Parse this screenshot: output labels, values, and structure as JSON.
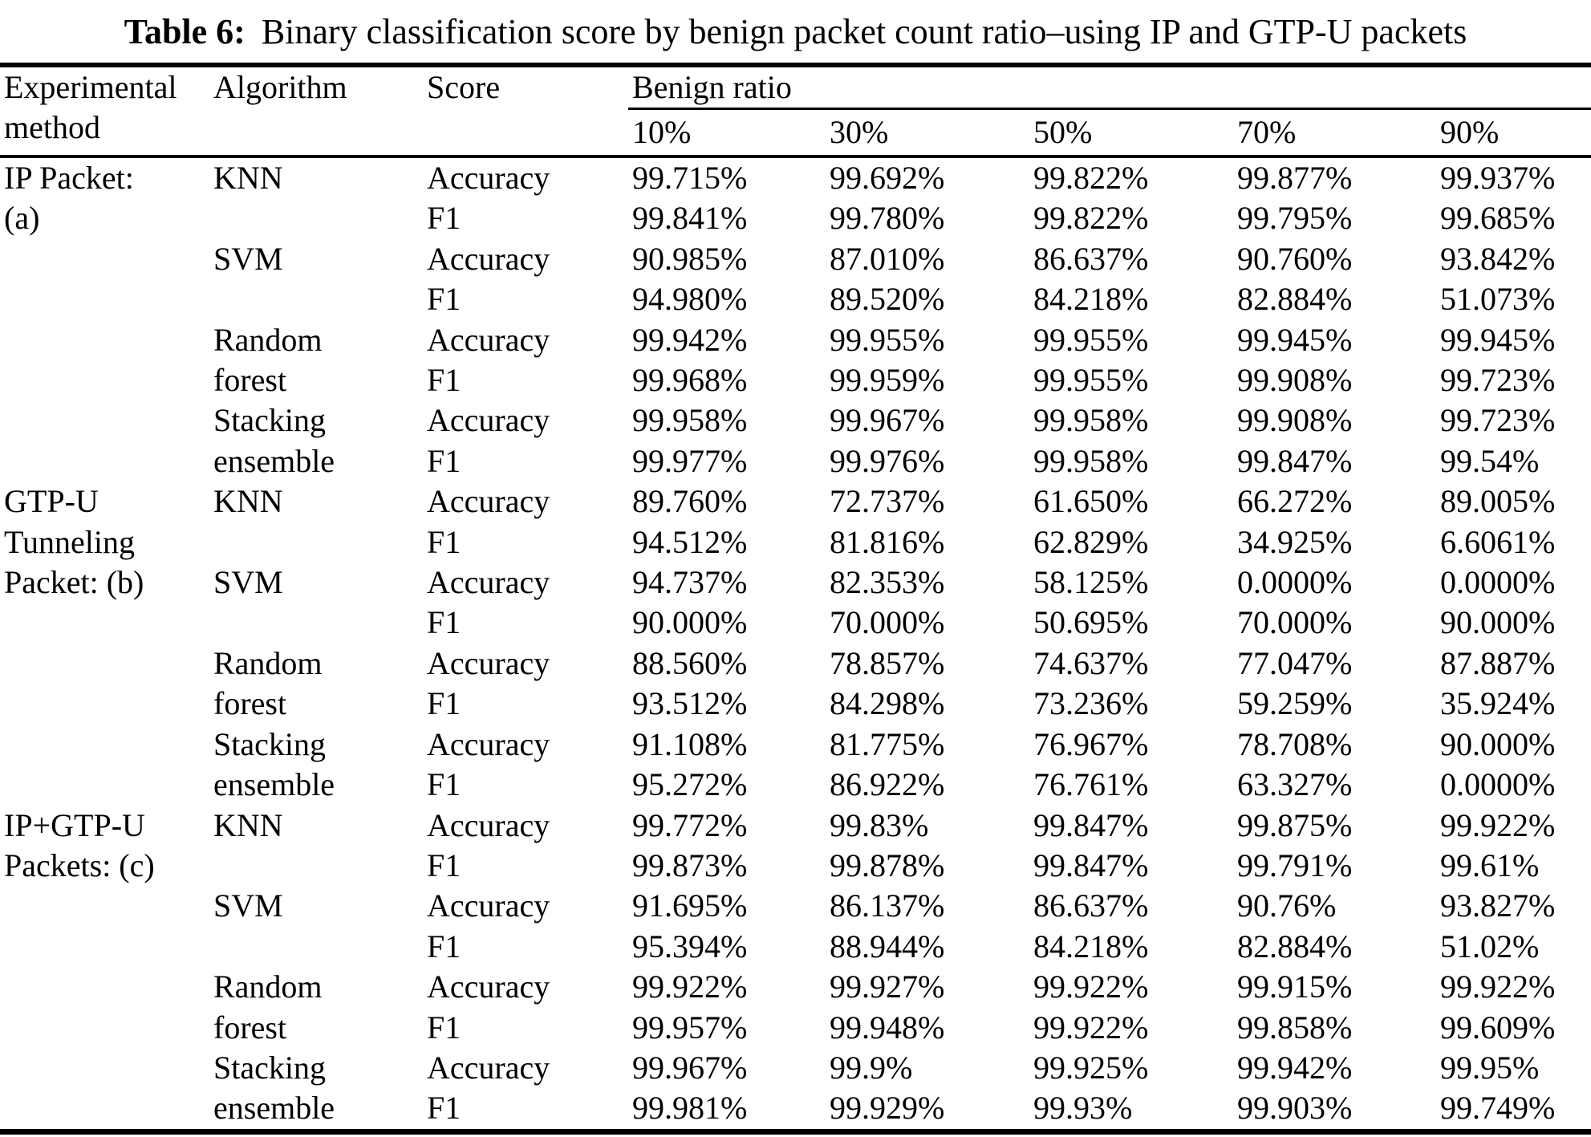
{
  "title": {
    "label": "Table 6:",
    "text": "Binary classification score by benign packet count ratio–using IP and GTP-U packets"
  },
  "header": {
    "col_method": "Experimental method",
    "col_algorithm": "Algorithm",
    "col_score": "Score",
    "col_benign_ratio": "Benign ratio",
    "ratios": [
      "10%",
      "30%",
      "50%",
      "70%",
      "90%"
    ]
  },
  "colors": {
    "text": "#000000",
    "background": "#ffffff",
    "rule": "#000000"
  },
  "chart_data": {
    "type": "table",
    "title": "Table 6: Binary classification score by benign packet count ratio–using IP and GTP-U packets",
    "columns": [
      "Experimental method",
      "Algorithm",
      "Score",
      "10%",
      "30%",
      "50%",
      "70%",
      "90%"
    ],
    "sections": [
      {
        "method": "IP Packet: (a)",
        "results": [
          {
            "algorithm": "KNN",
            "accuracy": [
              99.715,
              99.692,
              99.822,
              99.877,
              99.937
            ],
            "f1": [
              99.841,
              99.78,
              99.822,
              99.795,
              99.685
            ]
          },
          {
            "algorithm": "SVM",
            "accuracy": [
              90.985,
              87.01,
              86.637,
              90.76,
              93.842
            ],
            "f1": [
              94.98,
              89.52,
              84.218,
              82.884,
              51.073
            ]
          },
          {
            "algorithm": "Random forest",
            "accuracy": [
              99.942,
              99.955,
              99.955,
              99.945,
              99.945
            ],
            "f1": [
              99.968,
              99.959,
              99.955,
              99.908,
              99.723
            ]
          },
          {
            "algorithm": "Stacking ensemble",
            "accuracy": [
              99.958,
              99.967,
              99.958,
              99.908,
              99.723
            ],
            "f1": [
              99.977,
              99.976,
              99.958,
              99.847,
              99.54
            ]
          }
        ]
      },
      {
        "method": "GTP-U Tunneling Packet: (b)",
        "results": [
          {
            "algorithm": "KNN",
            "accuracy": [
              89.76,
              72.737,
              61.65,
              66.272,
              89.005
            ],
            "f1": [
              94.512,
              81.816,
              62.829,
              34.925,
              6.6061
            ]
          },
          {
            "algorithm": "SVM",
            "accuracy": [
              94.737,
              82.353,
              58.125,
              0.0,
              0.0
            ],
            "f1": [
              90.0,
              70.0,
              50.695,
              70.0,
              90.0
            ]
          },
          {
            "algorithm": "Random forest",
            "accuracy": [
              88.56,
              78.857,
              74.637,
              77.047,
              87.887
            ],
            "f1": [
              93.512,
              84.298,
              73.236,
              59.259,
              35.924
            ]
          },
          {
            "algorithm": "Stacking ensemble",
            "accuracy": [
              91.108,
              81.775,
              76.967,
              78.708,
              90.0
            ],
            "f1": [
              95.272,
              86.922,
              76.761,
              63.327,
              0.0
            ]
          }
        ]
      },
      {
        "method": "IP+GTP-U Packets: (c)",
        "results": [
          {
            "algorithm": "KNN",
            "accuracy": [
              99.772,
              99.83,
              99.847,
              99.875,
              99.922
            ],
            "f1": [
              99.873,
              99.878,
              99.847,
              99.791,
              99.61
            ]
          },
          {
            "algorithm": "SVM",
            "accuracy": [
              91.695,
              86.137,
              86.637,
              90.76,
              93.827
            ],
            "f1": [
              95.394,
              88.944,
              84.218,
              82.884,
              51.02
            ]
          },
          {
            "algorithm": "Random forest",
            "accuracy": [
              99.922,
              99.927,
              99.922,
              99.915,
              99.922
            ],
            "f1": [
              99.957,
              99.948,
              99.922,
              99.858,
              99.609
            ]
          },
          {
            "algorithm": "Stacking ensemble",
            "accuracy": [
              99.967,
              99.9,
              99.925,
              99.942,
              99.95
            ],
            "f1": [
              99.981,
              99.929,
              99.93,
              99.903,
              99.749
            ]
          }
        ]
      }
    ]
  },
  "table": {
    "rows": [
      {
        "method": "IP Packet:",
        "algorithm": "KNN",
        "score": "Accuracy",
        "values": [
          "99.715%",
          "99.692%",
          "99.822%",
          "99.877%",
          "99.937%"
        ]
      },
      {
        "method": "(a)",
        "algorithm": "",
        "score": "F1",
        "values": [
          "99.841%",
          "99.780%",
          "99.822%",
          "99.795%",
          "99.685%"
        ]
      },
      {
        "method": "",
        "algorithm": "SVM",
        "score": "Accuracy",
        "values": [
          "90.985%",
          "87.010%",
          "86.637%",
          "90.760%",
          "93.842%"
        ]
      },
      {
        "method": "",
        "algorithm": "",
        "score": "F1",
        "values": [
          "94.980%",
          "89.520%",
          "84.218%",
          "82.884%",
          "51.073%"
        ]
      },
      {
        "method": "",
        "algorithm": "Random",
        "score": "Accuracy",
        "values": [
          "99.942%",
          "99.955%",
          "99.955%",
          "99.945%",
          "99.945%"
        ]
      },
      {
        "method": "",
        "algorithm": "forest",
        "score": "F1",
        "values": [
          "99.968%",
          "99.959%",
          "99.955%",
          "99.908%",
          "99.723%"
        ]
      },
      {
        "method": "",
        "algorithm": "Stacking",
        "score": "Accuracy",
        "values": [
          "99.958%",
          "99.967%",
          "99.958%",
          "99.908%",
          "99.723%"
        ]
      },
      {
        "method": "",
        "algorithm": "ensemble",
        "score": "F1",
        "values": [
          "99.977%",
          "99.976%",
          "99.958%",
          "99.847%",
          "99.54%"
        ]
      },
      {
        "method": "GTP-U",
        "algorithm": "KNN",
        "score": "Accuracy",
        "values": [
          "89.760%",
          "72.737%",
          "61.650%",
          "66.272%",
          "89.005%"
        ]
      },
      {
        "method": "Tunneling",
        "algorithm": "",
        "score": "F1",
        "values": [
          "94.512%",
          "81.816%",
          "62.829%",
          "34.925%",
          "6.6061%"
        ]
      },
      {
        "method": "Packet: (b)",
        "algorithm": "SVM",
        "score": "Accuracy",
        "values": [
          "94.737%",
          "82.353%",
          "58.125%",
          "0.0000%",
          "0.0000%"
        ]
      },
      {
        "method": "",
        "algorithm": "",
        "score": "F1",
        "values": [
          "90.000%",
          "70.000%",
          "50.695%",
          "70.000%",
          "90.000%"
        ]
      },
      {
        "method": "",
        "algorithm": "Random",
        "score": "Accuracy",
        "values": [
          "88.560%",
          "78.857%",
          "74.637%",
          "77.047%",
          "87.887%"
        ]
      },
      {
        "method": "",
        "algorithm": "forest",
        "score": "F1",
        "values": [
          "93.512%",
          "84.298%",
          "73.236%",
          "59.259%",
          "35.924%"
        ]
      },
      {
        "method": "",
        "algorithm": "Stacking",
        "score": "Accuracy",
        "values": [
          "91.108%",
          "81.775%",
          "76.967%",
          "78.708%",
          "90.000%"
        ]
      },
      {
        "method": "",
        "algorithm": "ensemble",
        "score": "F1",
        "values": [
          "95.272%",
          "86.922%",
          "76.761%",
          "63.327%",
          "0.0000%"
        ]
      },
      {
        "method": "IP+GTP-U",
        "algorithm": "KNN",
        "score": "Accuracy",
        "values": [
          "99.772%",
          "99.83%",
          "99.847%",
          "99.875%",
          "99.922%"
        ]
      },
      {
        "method": "Packets: (c)",
        "algorithm": "",
        "score": "F1",
        "values": [
          "99.873%",
          "99.878%",
          "99.847%",
          "99.791%",
          "99.61%"
        ]
      },
      {
        "method": "",
        "algorithm": "SVM",
        "score": "Accuracy",
        "values": [
          "91.695%",
          "86.137%",
          "86.637%",
          "90.76%",
          "93.827%"
        ]
      },
      {
        "method": "",
        "algorithm": "",
        "score": "F1",
        "values": [
          "95.394%",
          "88.944%",
          "84.218%",
          "82.884%",
          "51.02%"
        ]
      },
      {
        "method": "",
        "algorithm": "Random",
        "score": "Accuracy",
        "values": [
          "99.922%",
          "99.927%",
          "99.922%",
          "99.915%",
          "99.922%"
        ]
      },
      {
        "method": "",
        "algorithm": "forest",
        "score": "F1",
        "values": [
          "99.957%",
          "99.948%",
          "99.922%",
          "99.858%",
          "99.609%"
        ]
      },
      {
        "method": "",
        "algorithm": "Stacking",
        "score": "Accuracy",
        "values": [
          "99.967%",
          "99.9%",
          "99.925%",
          "99.942%",
          "99.95%"
        ]
      },
      {
        "method": "",
        "algorithm": "ensemble",
        "score": "F1",
        "values": [
          "99.981%",
          "99.929%",
          "99.93%",
          "99.903%",
          "99.749%"
        ]
      }
    ]
  }
}
